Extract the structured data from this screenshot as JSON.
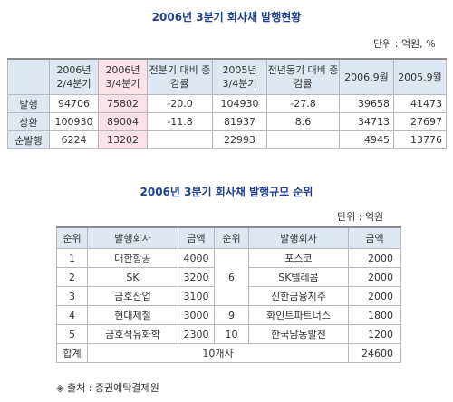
{
  "title1": "2006년 3분기 회사채 발행현황",
  "unit1": "단위 : 억원, %",
  "table1": {
    "headers": [
      "",
      "2006년 2/4분기",
      "2006년 3/4분기",
      "전분기 대비 증감률",
      "2005년 3/4분기",
      "전년동기 대비 증감률",
      "2006.9월",
      "2005.9월"
    ],
    "rows": [
      {
        "label": "발행",
        "cells": [
          "94706",
          "75802",
          "-20.0",
          "104930",
          "-27.8",
          "39658",
          "41473"
        ]
      },
      {
        "label": "상환",
        "cells": [
          "100930",
          "89004",
          "-11.8",
          "81937",
          "8.6",
          "34713",
          "27697"
        ]
      },
      {
        "label": "순발행",
        "cells": [
          "6224",
          "13202",
          "",
          "22993",
          "",
          "4945",
          "13776"
        ]
      }
    ]
  },
  "title2": "2006년 3분기 회사채 발행규모 순위",
  "unit2": "단위 : 억원",
  "table2": {
    "headers": [
      "순위",
      "발행회사",
      "금액",
      "순위",
      "발행회사",
      "금액"
    ],
    "left": [
      {
        "rank": "1",
        "company": "대한항공",
        "amount": "4000"
      },
      {
        "rank": "2",
        "company": "SK",
        "amount": "3200"
      },
      {
        "rank": "3",
        "company": "금호산업",
        "amount": "3100"
      },
      {
        "rank": "4",
        "company": "현대제철",
        "amount": "3000"
      },
      {
        "rank": "5",
        "company": "금호석유화학",
        "amount": "2300"
      }
    ],
    "right": [
      {
        "company": "포스코",
        "amount": "2000"
      },
      {
        "company": "SK텔레콤",
        "amount": "2000"
      },
      {
        "company": "신한금융지주",
        "amount": "2000"
      },
      {
        "company": "화인트파트너스",
        "amount": "1800"
      },
      {
        "company": "한국남동발전",
        "amount": "1200"
      }
    ],
    "right_ranks": {
      "r6": "6",
      "r9": "9",
      "r10": "10"
    },
    "total": {
      "label": "합계",
      "count": "10개사",
      "amount": "24600"
    }
  },
  "source": {
    "marker": "◈",
    "text": "출처 : 증권예탁결제원"
  }
}
